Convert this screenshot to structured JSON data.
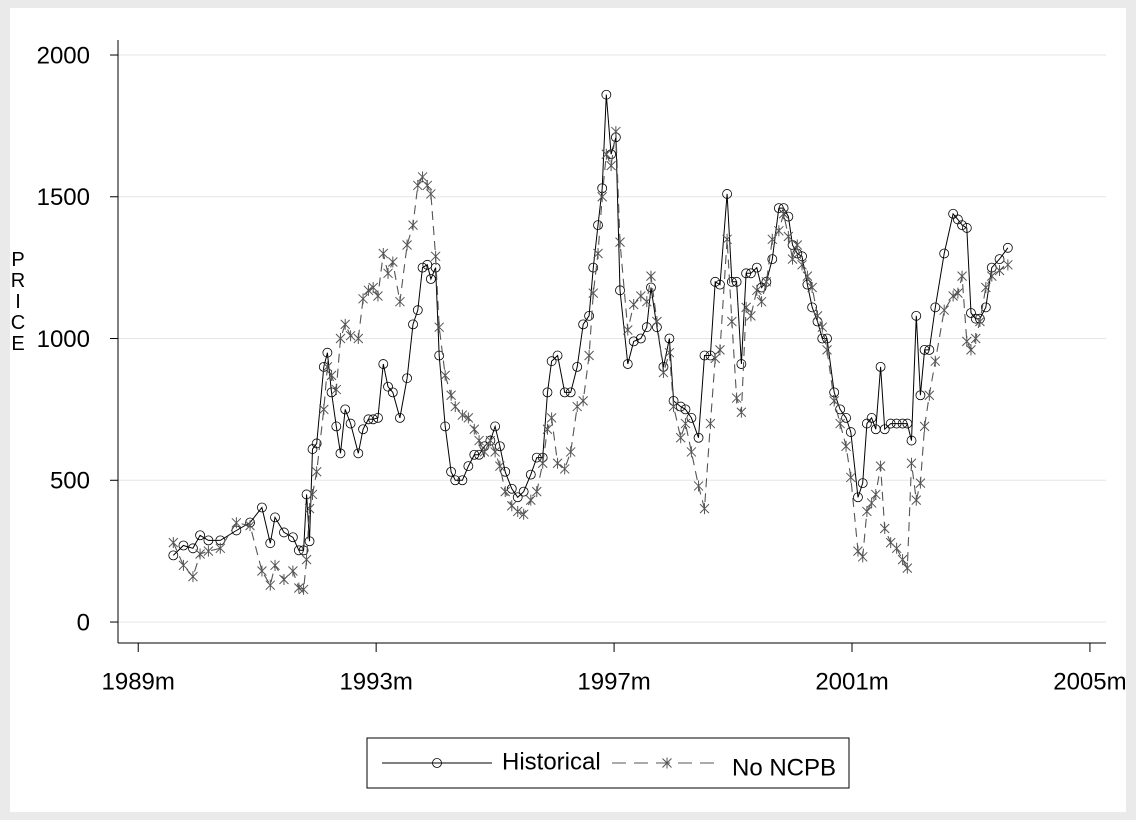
{
  "chart_data": {
    "type": "line",
    "ylabel": "PRICE",
    "x": [
      1989.59,
      1989.76,
      1989.92,
      1990.04,
      1990.18,
      1990.38,
      1990.65,
      1990.88,
      1991.08,
      1991.22,
      1991.3,
      1991.45,
      1991.6,
      1991.7,
      1991.78,
      1991.83,
      1991.88,
      1991.93,
      1992.0,
      1992.12,
      1992.18,
      1992.25,
      1992.33,
      1992.4,
      1992.48,
      1992.57,
      1992.7,
      1992.78,
      1992.87,
      1992.95,
      1993.03,
      1993.12,
      1993.2,
      1993.28,
      1993.4,
      1993.52,
      1993.62,
      1993.7,
      1993.78,
      1993.86,
      1993.92,
      1994.0,
      1994.06,
      1994.16,
      1994.26,
      1994.33,
      1994.45,
      1994.55,
      1994.65,
      1994.73,
      1994.82,
      1994.92,
      1995.0,
      1995.08,
      1995.17,
      1995.28,
      1995.38,
      1995.48,
      1995.6,
      1995.7,
      1995.8,
      1995.88,
      1995.95,
      1996.05,
      1996.17,
      1996.27,
      1996.38,
      1996.48,
      1996.58,
      1996.65,
      1996.73,
      1996.8,
      1996.87,
      1996.95,
      1997.03,
      1997.1,
      1997.23,
      1997.33,
      1997.45,
      1997.55,
      1997.62,
      1997.72,
      1997.83,
      1997.93,
      1998.0,
      1998.12,
      1998.2,
      1998.3,
      1998.42,
      1998.52,
      1998.62,
      1998.7,
      1998.78,
      1998.9,
      1998.98,
      1999.06,
      1999.14,
      1999.22,
      1999.3,
      1999.4,
      1999.48,
      1999.56,
      1999.66,
      1999.77,
      1999.85,
      1999.93,
      2000.0,
      2000.08,
      2000.16,
      2000.25,
      2000.33,
      2000.42,
      2000.5,
      2000.58,
      2000.7,
      2000.8,
      2000.9,
      2000.98,
      2001.1,
      2001.18,
      2001.25,
      2001.33,
      2001.4,
      2001.48,
      2001.55,
      2001.65,
      2001.75,
      2001.85,
      2001.93,
      2002.0,
      2002.08,
      2002.15,
      2002.22,
      2002.3,
      2002.4,
      2002.55,
      2002.7,
      2002.78,
      2002.85,
      2002.93,
      2003.0,
      2003.08,
      2003.15,
      2003.25,
      2003.35,
      2003.48,
      2003.62
    ],
    "series": [
      {
        "name": "Historical",
        "color": "#000000",
        "dash": false,
        "marker": "circle",
        "values": [
          235,
          270,
          260,
          306,
          288,
          288,
          323,
          351,
          404,
          278,
          369,
          316,
          299,
          253,
          253,
          450,
          285,
          610,
          630,
          900,
          950,
          810,
          690,
          595,
          750,
          700,
          595,
          680,
          715,
          715,
          720,
          910,
          830,
          810,
          720,
          860,
          1050,
          1100,
          1250,
          1260,
          1210,
          1250,
          940,
          690,
          530,
          500,
          500,
          550,
          590,
          590,
          620,
          640,
          690,
          620,
          530,
          470,
          440,
          460,
          520,
          580,
          580,
          810,
          920,
          940,
          810,
          810,
          900,
          1050,
          1080,
          1250,
          1400,
          1530,
          1860,
          1650,
          1710,
          1170,
          910,
          990,
          1000,
          1040,
          1180,
          1040,
          900,
          1000,
          780,
          760,
          750,
          720,
          650,
          940,
          940,
          1200,
          1190,
          1510,
          1200,
          1200,
          910,
          1230,
          1230,
          1250,
          1180,
          1200,
          1280,
          1460,
          1460,
          1430,
          1330,
          1300,
          1290,
          1190,
          1110,
          1060,
          1000,
          1000,
          810,
          750,
          720,
          670,
          440,
          490,
          700,
          720,
          680,
          900,
          680,
          700,
          700,
          700,
          700,
          640,
          1080,
          800,
          960,
          960,
          1110,
          1300,
          1440,
          1420,
          1400,
          1390,
          1090,
          1070,
          1070,
          1110,
          1250,
          1280,
          1320
        ]
      },
      {
        "name": "No NCPB",
        "color": "#555555",
        "dash": true,
        "marker": "star",
        "values": [
          280,
          200,
          160,
          240,
          250,
          260,
          350,
          340,
          180,
          130,
          200,
          150,
          180,
          120,
          115,
          220,
          400,
          450,
          530,
          750,
          900,
          870,
          820,
          1000,
          1050,
          1010,
          1000,
          1140,
          1170,
          1180,
          1150,
          1300,
          1230,
          1270,
          1130,
          1330,
          1400,
          1540,
          1570,
          1540,
          1510,
          1290,
          1040,
          870,
          800,
          760,
          730,
          720,
          680,
          640,
          600,
          640,
          600,
          550,
          460,
          410,
          390,
          380,
          430,
          460,
          560,
          680,
          720,
          560,
          540,
          600,
          760,
          780,
          940,
          1160,
          1300,
          1500,
          1650,
          1610,
          1730,
          1340,
          1030,
          1120,
          1150,
          1130,
          1220,
          1060,
          880,
          950,
          760,
          650,
          700,
          600,
          480,
          400,
          700,
          930,
          960,
          1350,
          1060,
          790,
          740,
          1110,
          1080,
          1170,
          1130,
          1200,
          1350,
          1380,
          1440,
          1360,
          1280,
          1330,
          1260,
          1220,
          1180,
          1080,
          1040,
          960,
          780,
          700,
          620,
          510,
          250,
          230,
          390,
          420,
          450,
          550,
          330,
          280,
          260,
          220,
          190,
          560,
          430,
          490,
          690,
          800,
          920,
          1100,
          1150,
          1160,
          1220,
          990,
          960,
          1000,
          1060,
          1180,
          1220,
          1240,
          1260
        ]
      }
    ],
    "xlim": [
      1988.66,
      2005.27
    ],
    "xticks": [
      {
        "value": 1989,
        "label": "1989m"
      },
      {
        "value": 1993,
        "label": "1993m"
      },
      {
        "value": 1997,
        "label": "1997m"
      },
      {
        "value": 2001,
        "label": "2001m"
      },
      {
        "value": 2005,
        "label": "2005m"
      }
    ],
    "ylim": [
      -74,
      2053
    ],
    "yticks": [
      0,
      500,
      1000,
      1500,
      2000
    ],
    "grid": true,
    "legend": "bottom"
  }
}
